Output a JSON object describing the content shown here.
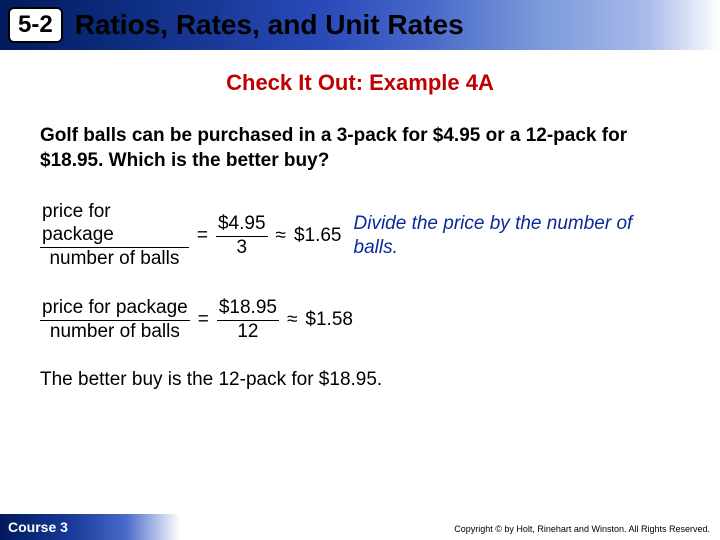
{
  "header": {
    "badge": "5-2",
    "title": "Ratios, Rates, and Unit Rates"
  },
  "subtitle": {
    "text": "Check It Out: Example 4A",
    "color": "#c00000"
  },
  "problem": "Golf balls can be purchased in a 3-pack for $4.95 or a 12-pack for $18.95.  Which is the better buy?",
  "eq1": {
    "lhs_num": "price for package",
    "lhs_den": "number of balls",
    "rhs_num": "$4.95",
    "rhs_den": "3",
    "approx": "$1.65"
  },
  "hint": "Divide the price by the number of balls.",
  "eq2": {
    "lhs_num": "price for package",
    "lhs_den": "number of balls",
    "rhs_num": "$18.95",
    "rhs_den": "12",
    "approx": "$1.58"
  },
  "conclusion": "The better buy is the 12-pack for $18.95.",
  "footer": {
    "course": "Course 3",
    "copyright": "Copyright © by Holt, Rinehart and Winston. All Rights Reserved."
  },
  "colors": {
    "subtitle": "#c00000",
    "hint": "#0a2a9a",
    "header_gradient_start": "#001a5c",
    "header_gradient_end": "#ffffff"
  },
  "typography": {
    "header_title_size": 28,
    "subtitle_size": 22,
    "body_size": 19,
    "footer_size": 14,
    "copyright_size": 9
  }
}
